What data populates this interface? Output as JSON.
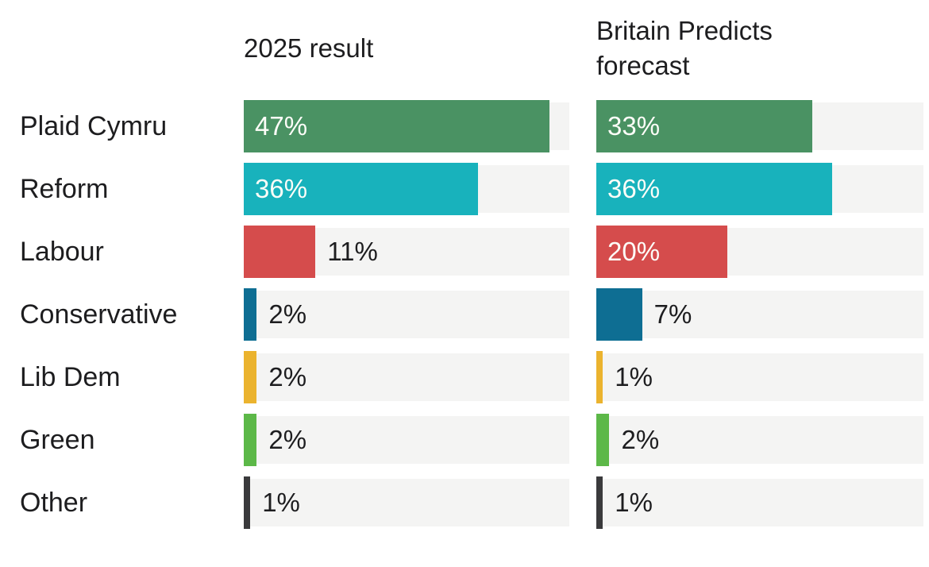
{
  "columns": {
    "result_header": "2025 result",
    "forecast_header": "Britain Predicts forecast"
  },
  "chart_data": {
    "type": "bar",
    "orientation": "horizontal",
    "title": "",
    "categories": [
      "Plaid Cymru",
      "Reform",
      "Labour",
      "Conservative",
      "Lib Dem",
      "Green",
      "Other"
    ],
    "series": [
      {
        "name": "2025 result",
        "values": [
          47,
          36,
          11,
          2,
          2,
          2,
          1
        ]
      },
      {
        "name": "Britain Predicts forecast",
        "values": [
          33,
          36,
          20,
          7,
          1,
          2,
          1
        ]
      }
    ],
    "unit": "%",
    "value_axis_max": 50,
    "bar_colors": [
      "#4a9263",
      "#18b2bc",
      "#d54c4c",
      "#0e6e93",
      "#ebb32e",
      "#5cb848",
      "#3a3a3c"
    ],
    "track_color": "#f4f4f3",
    "text_color": "#1d1d1f",
    "value_label_inside_color": "#fdfdf8",
    "label_inside_threshold": 20,
    "legend": "none",
    "gridlines": false
  }
}
